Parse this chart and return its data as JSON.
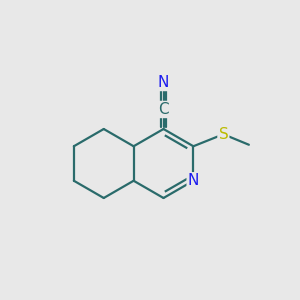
{
  "bg_color": "#e8e8e8",
  "bond_color": "#2a6b6b",
  "N_color": "#1a1aee",
  "S_color": "#bbbb00",
  "C_color": "#2a6b6b",
  "line_width": 1.6,
  "figsize": [
    3.0,
    3.0
  ],
  "dpi": 100,
  "font_size_atom": 11,
  "xlim": [
    0,
    1
  ],
  "ylim": [
    0,
    1
  ]
}
